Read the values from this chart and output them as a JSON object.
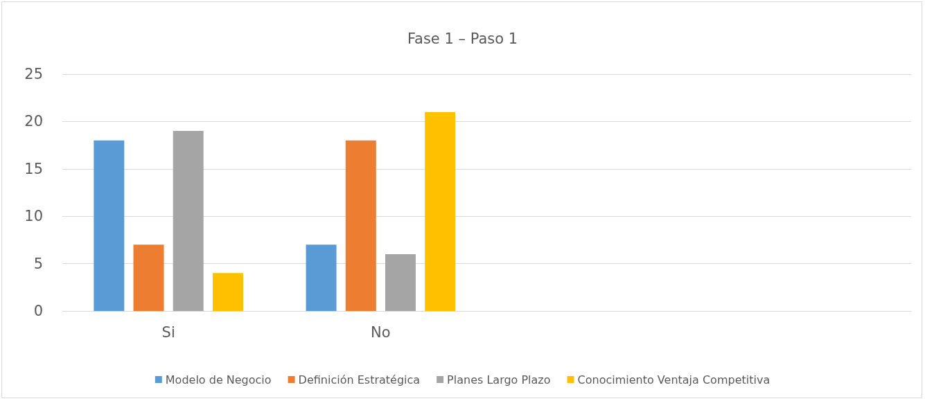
{
  "chart_data": {
    "type": "bar",
    "title": "Fase 1 – Paso 1",
    "categories": [
      "Si",
      "No",
      null,
      null
    ],
    "series": [
      {
        "name": "Modelo de Negocio",
        "color": "#5b9bd5",
        "values": [
          18,
          7,
          null,
          null
        ]
      },
      {
        "name": "Definición Estratégica",
        "color": "#ed7d31",
        "values": [
          7,
          18,
          null,
          null
        ]
      },
      {
        "name": "Planes Largo Plazo",
        "color": "#a5a5a5",
        "values": [
          19,
          6,
          null,
          null
        ]
      },
      {
        "name": "Conocimiento Ventaja Competitiva",
        "color": "#ffc000",
        "values": [
          4,
          21,
          null,
          null
        ]
      }
    ],
    "ylim": [
      0,
      25
    ],
    "yticks": [
      0,
      5,
      10,
      15,
      20,
      25
    ],
    "grid": "y",
    "legend": "bottom"
  }
}
